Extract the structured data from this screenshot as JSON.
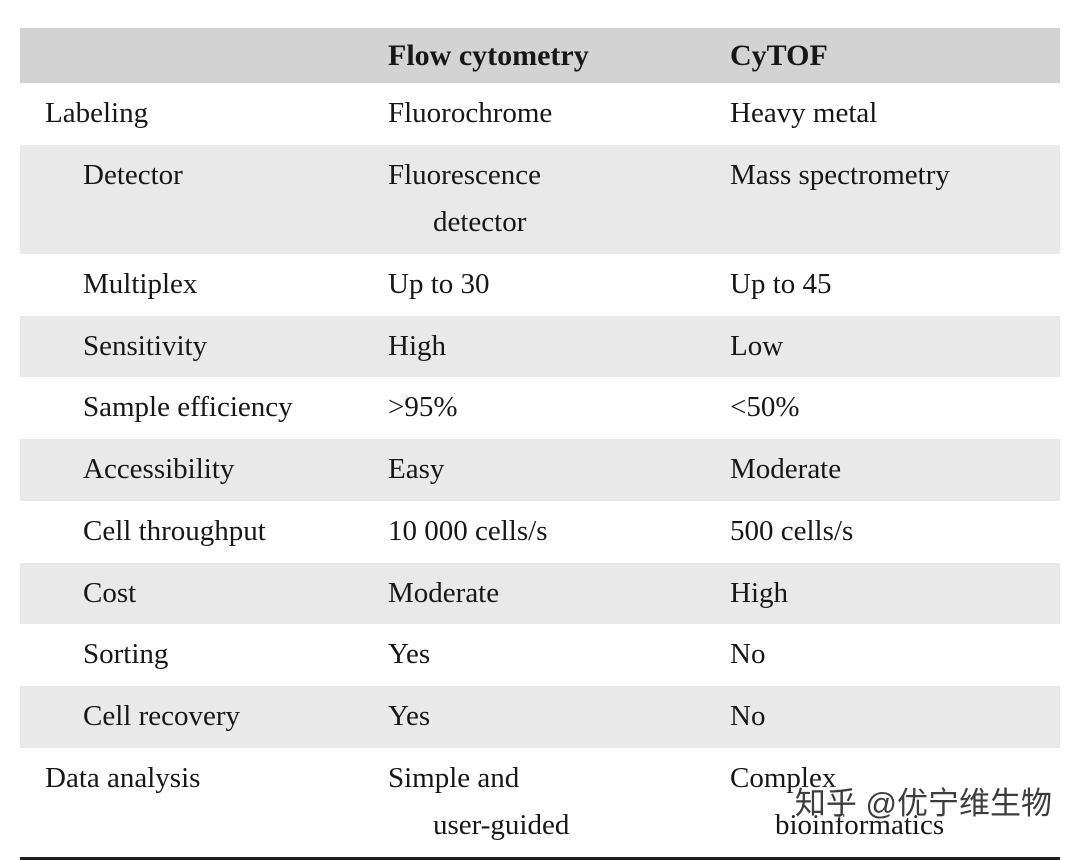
{
  "table": {
    "headers": {
      "col1": "",
      "col2": "Flow cytometry",
      "col3": "CyTOF"
    },
    "rows": [
      {
        "label": "Labeling",
        "col2": "Fluorochrome",
        "col3": "Heavy metal"
      },
      {
        "label": "Detector",
        "col2": "Fluorescence",
        "col2b": "detector",
        "col3": "Mass spectrometry"
      },
      {
        "label": "Multiplex",
        "col2": "Up to 30",
        "col3": "Up to 45"
      },
      {
        "label": "Sensitivity",
        "col2": "High",
        "col3": "Low"
      },
      {
        "label": "Sample efficiency",
        "col2": ">95%",
        "col3": "<50%"
      },
      {
        "label": "Accessibility",
        "col2": "Easy",
        "col3": "Moderate"
      },
      {
        "label": "Cell throughput",
        "col2": "10 000 cells/s",
        "col3": "500 cells/s"
      },
      {
        "label": "Cost",
        "col2": "Moderate",
        "col3": "High"
      },
      {
        "label": "Sorting",
        "col2": "Yes",
        "col3": "No"
      },
      {
        "label": "Cell recovery",
        "col2": "Yes",
        "col3": "No"
      },
      {
        "label": "Data analysis",
        "col2": "Simple and",
        "col2b": "user-guided",
        "col3": "Complex",
        "col3b": "bioinformatics"
      }
    ]
  },
  "watermark": {
    "text": "知乎 @优宁维生物"
  }
}
